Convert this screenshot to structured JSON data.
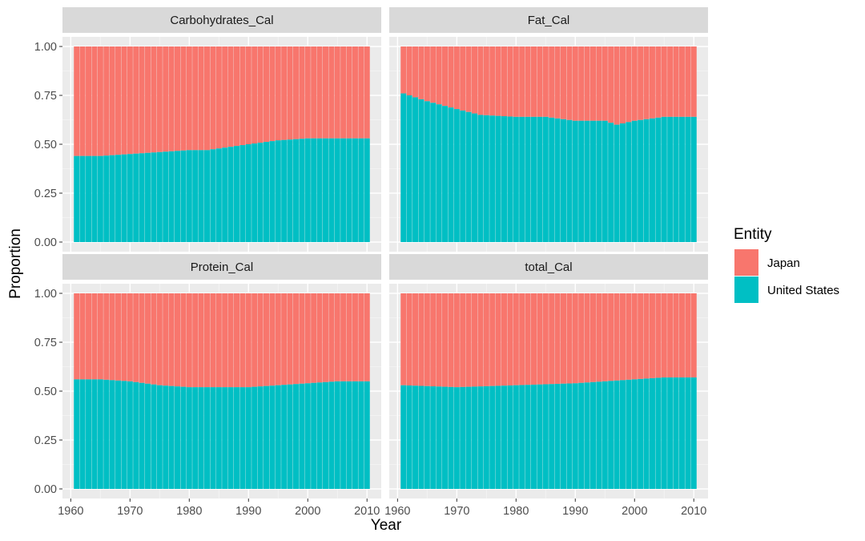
{
  "chart_data": {
    "type": "bar",
    "subtype": "stacked proportion bars, faceted",
    "xlabel": "Year",
    "ylabel": "Proportion",
    "x_ticks": [
      "1960",
      "1970",
      "1980",
      "1990",
      "2000",
      "2010"
    ],
    "y_ticks": [
      "0.00",
      "0.25",
      "0.50",
      "0.75",
      "1.00"
    ],
    "x_range": [
      1961,
      2010
    ],
    "ylim": [
      0,
      1
    ],
    "grid": true,
    "legend": {
      "title": "Entity",
      "position": "right",
      "entries": [
        {
          "label": "Japan",
          "color": "#F8766D"
        },
        {
          "label": "United States",
          "color": "#00BFC4"
        }
      ]
    },
    "facets": [
      {
        "title": "Carbohydrates_Cal",
        "x": [
          1961,
          2010
        ],
        "us_share_knots": [
          [
            1961,
            0.44
          ],
          [
            1965,
            0.44
          ],
          [
            1970,
            0.45
          ],
          [
            1975,
            0.46
          ],
          [
            1980,
            0.47
          ],
          [
            1983,
            0.47
          ],
          [
            1990,
            0.5
          ],
          [
            1995,
            0.52
          ],
          [
            2000,
            0.53
          ],
          [
            2005,
            0.53
          ],
          [
            2010,
            0.53
          ]
        ]
      },
      {
        "title": "Fat_Cal",
        "x": [
          1961,
          2010
        ],
        "us_share_knots": [
          [
            1961,
            0.76
          ],
          [
            1965,
            0.72
          ],
          [
            1970,
            0.68
          ],
          [
            1974,
            0.65
          ],
          [
            1980,
            0.64
          ],
          [
            1985,
            0.64
          ],
          [
            1990,
            0.62
          ],
          [
            1995,
            0.62
          ],
          [
            1997,
            0.6
          ],
          [
            2000,
            0.62
          ],
          [
            2005,
            0.64
          ],
          [
            2010,
            0.64
          ]
        ]
      },
      {
        "title": "Protein_Cal",
        "x": [
          1961,
          2010
        ],
        "us_share_knots": [
          [
            1961,
            0.56
          ],
          [
            1965,
            0.56
          ],
          [
            1970,
            0.55
          ],
          [
            1975,
            0.53
          ],
          [
            1980,
            0.52
          ],
          [
            1985,
            0.52
          ],
          [
            1990,
            0.52
          ],
          [
            1995,
            0.53
          ],
          [
            2000,
            0.54
          ],
          [
            2005,
            0.55
          ],
          [
            2010,
            0.55
          ]
        ]
      },
      {
        "title": "total_Cal",
        "x": [
          1961,
          2010
        ],
        "us_share_knots": [
          [
            1961,
            0.53
          ],
          [
            1970,
            0.52
          ],
          [
            1980,
            0.53
          ],
          [
            1990,
            0.54
          ],
          [
            2000,
            0.56
          ],
          [
            2005,
            0.57
          ],
          [
            2010,
            0.57
          ]
        ]
      }
    ]
  }
}
